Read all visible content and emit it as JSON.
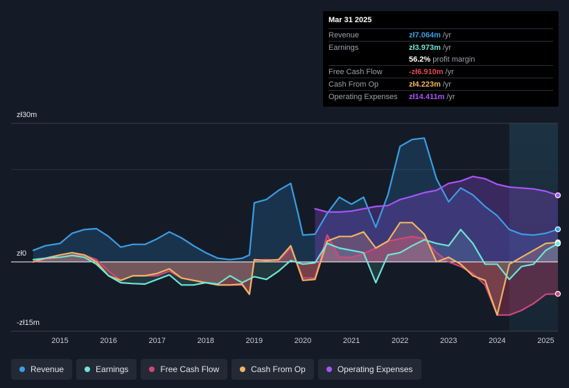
{
  "tooltip": {
    "date": "Mar 31 2025",
    "rows": [
      {
        "label": "Revenue",
        "value": "zł7.064m",
        "unit": "/yr",
        "color": "#3b9ee5"
      },
      {
        "label": "Earnings",
        "value": "zł3.973m",
        "unit": "/yr",
        "color": "#6ee6d6"
      },
      {
        "label": "",
        "value": "56.2%",
        "unit": "profit margin",
        "color": "#ffffff"
      },
      {
        "label": "Free Cash Flow",
        "value": "-zł6.910m",
        "unit": "/yr",
        "color": "#e5474e"
      },
      {
        "label": "Cash From Op",
        "value": "zł4.223m",
        "unit": "/yr",
        "color": "#f0b562"
      },
      {
        "label": "Operating Expenses",
        "value": "zł14.411m",
        "unit": "/yr",
        "color": "#a855f7"
      }
    ]
  },
  "legend": [
    {
      "label": "Revenue",
      "color": "#3b9ee5"
    },
    {
      "label": "Earnings",
      "color": "#6ee6d6"
    },
    {
      "label": "Free Cash Flow",
      "color": "#d1487c"
    },
    {
      "label": "Cash From Op",
      "color": "#f0b562"
    },
    {
      "label": "Operating Expenses",
      "color": "#a855f7"
    }
  ],
  "chart_data": {
    "type": "area",
    "title": "",
    "y_labels": {
      "top": "zł30m",
      "zero": "zł0",
      "bottom": "-zł15m"
    },
    "ylim": [
      -15,
      30
    ],
    "xlim": [
      2014.45,
      2025.25
    ],
    "x_ticks": [
      "2015",
      "2016",
      "2017",
      "2018",
      "2019",
      "2020",
      "2021",
      "2022",
      "2023",
      "2024",
      "2025"
    ],
    "x_tick_values": [
      2015,
      2016,
      2017,
      2018,
      2019,
      2020,
      2021,
      2022,
      2023,
      2024,
      2025
    ],
    "forecast_shade_start": 2024.25,
    "series": [
      {
        "name": "Revenue",
        "color": "#3b9ee5",
        "x": [
          2014.45,
          2014.7,
          2015.0,
          2015.25,
          2015.5,
          2015.75,
          2016.0,
          2016.25,
          2016.5,
          2016.75,
          2017.0,
          2017.25,
          2017.5,
          2017.75,
          2018.0,
          2018.25,
          2018.5,
          2018.75,
          2018.9,
          2019.0,
          2019.25,
          2019.5,
          2019.75,
          2019.9,
          2020.0,
          2020.25,
          2020.5,
          2020.75,
          2021.0,
          2021.25,
          2021.5,
          2021.75,
          2022.0,
          2022.25,
          2022.5,
          2022.75,
          2023.0,
          2023.25,
          2023.5,
          2023.75,
          2024.0,
          2024.25,
          2024.5,
          2024.75,
          2025.0,
          2025.25
        ],
        "values": [
          2.5,
          3.5,
          4.0,
          6.2,
          7.0,
          7.2,
          5.5,
          3.2,
          3.8,
          3.8,
          5.0,
          6.5,
          5.2,
          3.5,
          2.0,
          0.8,
          0.5,
          0.8,
          1.5,
          12.8,
          13.5,
          15.5,
          17.0,
          10.5,
          5.8,
          6.0,
          10.5,
          14.0,
          12.5,
          14.0,
          7.5,
          14.5,
          25.0,
          26.5,
          26.8,
          18.0,
          13.0,
          16.0,
          14.5,
          12.0,
          10.0,
          7.0,
          6.0,
          5.8,
          6.2,
          7.064
        ]
      },
      {
        "name": "Earnings",
        "color": "#6ee6d6",
        "x": [
          2014.45,
          2014.7,
          2015.0,
          2015.25,
          2015.5,
          2015.75,
          2016.0,
          2016.25,
          2016.5,
          2016.75,
          2017.0,
          2017.25,
          2017.5,
          2017.75,
          2018.0,
          2018.25,
          2018.5,
          2018.75,
          2019.0,
          2019.25,
          2019.5,
          2019.75,
          2020.0,
          2020.25,
          2020.5,
          2020.75,
          2021.0,
          2021.25,
          2021.5,
          2021.75,
          2022.0,
          2022.25,
          2022.5,
          2022.75,
          2023.0,
          2023.25,
          2023.5,
          2023.75,
          2024.0,
          2024.25,
          2024.5,
          2024.75,
          2025.0,
          2025.25
        ],
        "values": [
          0.5,
          0.8,
          1.0,
          1.4,
          1.0,
          -0.5,
          -3.0,
          -4.5,
          -4.7,
          -4.8,
          -3.8,
          -2.8,
          -5.0,
          -5.0,
          -4.5,
          -4.8,
          -3.0,
          -4.5,
          -3.2,
          -3.8,
          -2.0,
          0.3,
          -0.5,
          -0.2,
          4.0,
          3.0,
          2.5,
          2.0,
          -4.5,
          1.5,
          2.0,
          3.5,
          4.8,
          4.0,
          3.5,
          7.0,
          4.0,
          -0.5,
          -0.5,
          -3.8,
          -1.0,
          -0.5,
          2.5,
          3.973
        ]
      },
      {
        "name": "Free Cash Flow",
        "color": "#d1487c",
        "x": [
          2014.45,
          2014.7,
          2015.0,
          2015.25,
          2015.5,
          2015.75,
          2016.0,
          2016.25,
          2016.5,
          2016.75,
          2017.0,
          2017.25,
          2017.5,
          2017.75,
          2018.0,
          2018.25,
          2018.5,
          2018.75,
          2018.9,
          2019.0,
          2019.25,
          2019.5,
          2019.75,
          2020.0,
          2020.25,
          2020.5,
          2020.75,
          2021.0,
          2021.25,
          2021.5,
          2021.75,
          2022.0,
          2022.25,
          2022.5,
          2022.75,
          2023.0,
          2023.25,
          2023.5,
          2023.75,
          2024.0,
          2024.25,
          2024.5,
          2024.75,
          2025.0,
          2025.25
        ],
        "values": [
          0.0,
          0.5,
          1.0,
          1.5,
          1.5,
          0.5,
          -2.0,
          -4.0,
          -3.0,
          -3.0,
          -3.0,
          -2.0,
          -3.5,
          -4.0,
          -4.5,
          -5.0,
          -5.0,
          -5.0,
          -7.0,
          0.3,
          0.5,
          0.3,
          3.0,
          -3.5,
          -3.5,
          5.8,
          1.0,
          1.0,
          1.8,
          3.0,
          4.5,
          5.0,
          5.5,
          5.0,
          2.0,
          0.0,
          -1.0,
          -2.5,
          -5.0,
          -11.5,
          -11.5,
          -10.5,
          -9.0,
          -7.0,
          -6.91
        ]
      },
      {
        "name": "Cash From Op",
        "color": "#f0b562",
        "x": [
          2014.45,
          2014.7,
          2015.0,
          2015.25,
          2015.5,
          2015.75,
          2016.0,
          2016.25,
          2016.5,
          2016.75,
          2017.0,
          2017.25,
          2017.5,
          2017.75,
          2018.0,
          2018.25,
          2018.5,
          2018.75,
          2018.9,
          2019.0,
          2019.25,
          2019.5,
          2019.75,
          2020.0,
          2020.25,
          2020.5,
          2020.75,
          2021.0,
          2021.25,
          2021.5,
          2021.75,
          2022.0,
          2022.25,
          2022.5,
          2022.75,
          2023.0,
          2023.25,
          2023.5,
          2023.75,
          2024.0,
          2024.25,
          2024.5,
          2024.75,
          2025.0,
          2025.25
        ],
        "values": [
          0.0,
          0.8,
          1.5,
          2.0,
          1.5,
          0.0,
          -3.0,
          -4.0,
          -3.0,
          -3.0,
          -2.5,
          -1.5,
          -3.5,
          -4.0,
          -4.5,
          -5.0,
          -5.0,
          -4.8,
          -7.0,
          0.5,
          0.3,
          0.5,
          3.5,
          -4.0,
          -3.8,
          4.5,
          5.5,
          5.5,
          6.5,
          3.0,
          4.5,
          8.5,
          8.5,
          6.0,
          0.0,
          1.0,
          -0.5,
          -3.0,
          -4.0,
          -11.5,
          -0.5,
          1.0,
          2.5,
          4.0,
          4.223
        ]
      },
      {
        "name": "Operating Expenses",
        "color": "#a855f7",
        "x": [
          2020.25,
          2020.5,
          2020.75,
          2021.0,
          2021.25,
          2021.5,
          2021.75,
          2022.0,
          2022.25,
          2022.5,
          2022.75,
          2023.0,
          2023.25,
          2023.5,
          2023.75,
          2024.0,
          2024.25,
          2024.5,
          2024.75,
          2025.0,
          2025.25
        ],
        "values": [
          11.5,
          10.8,
          10.8,
          11.0,
          11.5,
          12.0,
          12.2,
          13.5,
          14.2,
          15.0,
          15.5,
          17.0,
          17.5,
          18.5,
          18.0,
          16.8,
          16.2,
          16.0,
          15.8,
          15.3,
          14.411
        ]
      }
    ]
  }
}
